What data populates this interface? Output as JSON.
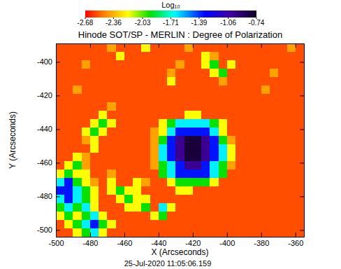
{
  "chart_data": {
    "type": "heatmap",
    "title": "Hinode SOT/SP - MERLIN : Degree of Polarization",
    "x_label": "X (Arcseconds)",
    "y_label": "Y (Arcseconds)",
    "annotations": [
      "25-Jul-2020 11:05:06.159"
    ],
    "xlim": [
      -500,
      -355
    ],
    "ylim": [
      -504,
      -389
    ],
    "xticks": [
      -500,
      -480,
      -460,
      -440,
      -420,
      -400,
      -380,
      -360
    ],
    "yticks": [
      -500,
      -480,
      -460,
      -440,
      -420,
      -400
    ],
    "colorbar_label": "Log₁₀",
    "colorbar_range": [
      -2.68,
      -0.74
    ],
    "colorbar_ticks": [
      -2.68,
      -2.36,
      -2.03,
      -1.71,
      -1.39,
      -1.06,
      -0.74
    ],
    "x": [
      -497.5,
      -492.5,
      -487.5,
      -482.5,
      -477.5,
      -472.5,
      -467.5,
      -462.5,
      -457.5,
      -452.5,
      -447.5,
      -442.5,
      -437.5,
      -432.5,
      -427.5,
      -422.5,
      -417.5,
      -412.5,
      -407.5,
      -402.5,
      -397.5,
      -392.5,
      -387.5,
      -382.5,
      -377.5,
      -372.5,
      -367.5,
      -362.5,
      -357.5
    ],
    "y": [
      -391.5,
      -396.5,
      -401.5,
      -406.5,
      -411.5,
      -416.5,
      -421.5,
      -426.5,
      -431.5,
      -436.5,
      -441.5,
      -446.5,
      -451.5,
      -456.5,
      -461.5,
      -466.5,
      -471.5,
      -476.5,
      -481.5,
      -486.5,
      -491.5,
      -496.5,
      -501.5
    ],
    "values": [
      [
        -2.55,
        -2.55,
        -2.55,
        -2.55,
        -2.55,
        -2.55,
        -2.4,
        -2.55,
        -2.55,
        -2.55,
        -2.2,
        -2.55,
        -2.55,
        -2.55,
        -2.55,
        -2.4,
        -2.55,
        -2.55,
        -2.55,
        -2.55,
        -2.55,
        -2.55,
        -2.55,
        -2.55,
        -2.55,
        -2.55,
        -2.55,
        -2.4,
        -2.55
      ],
      [
        -2.55,
        -2.55,
        -2.55,
        -2.55,
        -2.55,
        -2.55,
        -2.55,
        -2.2,
        -2.55,
        -2.55,
        -2.55,
        -2.55,
        -2.55,
        -2.55,
        -2.55,
        -2.55,
        -2.55,
        -2.2,
        -2.4,
        -2.55,
        -2.55,
        -2.55,
        -2.55,
        -2.55,
        -2.55,
        -2.55,
        -2.55,
        -2.55,
        -2.55
      ],
      [
        -2.55,
        -2.55,
        -2.55,
        -2.4,
        -2.55,
        -2.55,
        -2.55,
        -2.55,
        -2.55,
        -2.55,
        -2.55,
        -2.55,
        -2.55,
        -2.55,
        -2.4,
        -2.55,
        -2.55,
        -2.2,
        -1.95,
        -2.55,
        -2.2,
        -2.55,
        -2.55,
        -2.55,
        -2.55,
        -2.55,
        -2.55,
        -2.55,
        -2.55
      ],
      [
        -2.55,
        -2.55,
        -2.55,
        -2.55,
        -2.55,
        -2.55,
        -2.55,
        -2.55,
        -2.55,
        -2.55,
        -2.55,
        -2.55,
        -2.55,
        -2.4,
        -2.55,
        -2.55,
        -2.55,
        -2.55,
        -2.2,
        -1.95,
        -2.55,
        -2.55,
        -2.55,
        -2.55,
        -2.55,
        -2.4,
        -2.55,
        -2.55,
        -2.55
      ],
      [
        -2.55,
        -2.55,
        -2.55,
        -2.55,
        -2.55,
        -2.55,
        -2.55,
        -2.55,
        -2.55,
        -2.55,
        -2.55,
        -2.55,
        -2.55,
        -2.2,
        -2.55,
        -2.55,
        -2.55,
        -2.55,
        -2.55,
        -2.4,
        -2.55,
        -2.55,
        -2.55,
        -2.55,
        -2.55,
        -2.55,
        -2.55,
        -2.55,
        -2.55
      ],
      [
        -2.55,
        -2.55,
        -2.4,
        -2.55,
        -2.55,
        -2.55,
        -2.55,
        -2.55,
        -2.55,
        -2.55,
        -2.55,
        -2.55,
        -2.55,
        -2.55,
        -2.55,
        -2.55,
        -2.55,
        -2.55,
        -2.55,
        -2.55,
        -2.55,
        -2.55,
        -2.55,
        -2.55,
        -2.4,
        -2.55,
        -2.55,
        -2.55,
        -2.55
      ],
      [
        -2.55,
        -2.55,
        -2.55,
        -2.55,
        -2.55,
        -2.55,
        -2.55,
        -2.55,
        -2.55,
        -2.55,
        -2.55,
        -2.55,
        -2.55,
        -2.55,
        -2.55,
        -2.55,
        -2.55,
        -2.55,
        -2.55,
        -2.55,
        -2.55,
        -2.55,
        -2.55,
        -2.55,
        -2.55,
        -2.55,
        -2.55,
        -2.55,
        -2.55
      ],
      [
        -2.55,
        -2.55,
        -2.55,
        -2.55,
        -2.55,
        -2.55,
        -2.4,
        -2.55,
        -2.55,
        -2.55,
        -2.55,
        -2.55,
        -2.55,
        -2.55,
        -2.55,
        -2.55,
        -2.55,
        -2.55,
        -2.55,
        -2.55,
        -2.55,
        -2.55,
        -2.55,
        -2.55,
        -2.55,
        -2.55,
        -2.55,
        -2.55,
        -2.55
      ],
      [
        -2.55,
        -2.55,
        -2.55,
        -2.55,
        -2.55,
        -2.2,
        -2.55,
        -2.55,
        -2.55,
        -2.55,
        -2.55,
        -2.55,
        -2.55,
        -2.55,
        -2.55,
        -2.2,
        -2.2,
        -2.55,
        -2.55,
        -2.55,
        -2.55,
        -2.55,
        -2.55,
        -2.55,
        -2.55,
        -2.55,
        -2.55,
        -2.55,
        -2.55
      ],
      [
        -2.55,
        -2.55,
        -2.55,
        -2.55,
        -2.2,
        -1.95,
        -2.2,
        -2.55,
        -2.55,
        -2.55,
        -2.55,
        -2.55,
        -2.2,
        -1.95,
        -1.65,
        -1.65,
        -1.65,
        -1.65,
        -1.95,
        -2.2,
        -2.55,
        -2.55,
        -2.55,
        -2.55,
        -2.55,
        -2.55,
        -2.55,
        -2.55,
        -2.55
      ],
      [
        -2.55,
        -2.55,
        -2.55,
        -2.2,
        -1.95,
        -2.2,
        -2.55,
        -2.55,
        -2.55,
        -2.55,
        -2.55,
        -2.4,
        -2.2,
        -1.65,
        -1.35,
        -1.35,
        -1.35,
        -1.35,
        -1.65,
        -2.2,
        -2.55,
        -2.55,
        -2.55,
        -2.55,
        -2.55,
        -2.55,
        -2.55,
        -2.55,
        -2.55
      ],
      [
        -2.55,
        -2.55,
        -2.55,
        -2.4,
        -2.2,
        -2.55,
        -2.55,
        -2.55,
        -2.55,
        -2.55,
        -2.55,
        -2.4,
        -1.95,
        -1.35,
        -1.0,
        -0.8,
        -0.8,
        -1.0,
        -1.35,
        -1.95,
        -2.4,
        -2.55,
        -2.55,
        -2.55,
        -2.55,
        -2.55,
        -2.55,
        -2.55,
        -2.55
      ],
      [
        -2.55,
        -2.55,
        -2.55,
        -2.55,
        -2.2,
        -2.55,
        -2.55,
        -2.55,
        -2.55,
        -2.55,
        -2.55,
        -2.4,
        -1.65,
        -1.35,
        -1.0,
        -0.8,
        -0.8,
        -1.0,
        -1.35,
        -1.65,
        -2.2,
        -2.55,
        -2.55,
        -2.55,
        -2.55,
        -2.55,
        -2.55,
        -2.55,
        -2.55
      ],
      [
        -2.55,
        -2.55,
        -2.2,
        -2.4,
        -2.55,
        -2.55,
        -2.55,
        -2.55,
        -2.55,
        -2.55,
        -2.55,
        -2.4,
        -1.65,
        -1.35,
        -1.0,
        -0.8,
        -0.8,
        -1.0,
        -1.35,
        -1.65,
        -2.2,
        -2.55,
        -2.55,
        -2.55,
        -2.55,
        -2.55,
        -2.55,
        -2.55,
        -2.55
      ],
      [
        -2.55,
        -2.2,
        -1.95,
        -2.4,
        -2.55,
        -2.55,
        -2.55,
        -2.55,
        -2.55,
        -2.55,
        -2.55,
        -2.4,
        -1.95,
        -1.65,
        -1.35,
        -1.0,
        -1.0,
        -1.35,
        -1.65,
        -1.95,
        -2.4,
        -2.55,
        -2.55,
        -2.55,
        -2.55,
        -2.55,
        -2.55,
        -2.55,
        -2.55
      ],
      [
        -2.2,
        -1.95,
        -2.2,
        -2.2,
        -2.55,
        -2.55,
        -2.4,
        -2.55,
        -2.55,
        -2.55,
        -2.55,
        -2.55,
        -1.95,
        -1.65,
        -1.35,
        -1.35,
        -1.35,
        -1.35,
        -1.65,
        -1.95,
        -2.55,
        -2.55,
        -2.55,
        -2.55,
        -2.55,
        -2.55,
        -2.55,
        -2.55,
        -2.55
      ],
      [
        -1.65,
        -1.35,
        -1.95,
        -2.2,
        -2.4,
        -2.55,
        -2.2,
        -2.55,
        -2.55,
        -2.2,
        -2.4,
        -2.55,
        -2.55,
        -2.2,
        -1.95,
        -1.95,
        -1.95,
        -1.95,
        -2.2,
        -2.55,
        -2.55,
        -2.55,
        -2.55,
        -2.55,
        -2.55,
        -2.55,
        -2.55,
        -2.55,
        -2.55
      ],
      [
        -1.35,
        -1.35,
        -1.65,
        -1.95,
        -2.2,
        -2.55,
        -2.2,
        -1.95,
        -2.2,
        -2.2,
        -2.55,
        -2.55,
        -2.55,
        -2.55,
        -2.2,
        -2.2,
        -2.55,
        -2.55,
        -2.55,
        -2.55,
        -2.55,
        -2.55,
        -2.55,
        -2.55,
        -2.55,
        -2.55,
        -2.55,
        -2.55,
        -2.55
      ],
      [
        -1.65,
        -1.35,
        -1.65,
        -1.95,
        -2.2,
        -2.55,
        -2.55,
        -2.2,
        -1.95,
        -2.2,
        -2.2,
        -2.55,
        -2.55,
        -2.55,
        -2.55,
        -2.55,
        -2.55,
        -2.55,
        -2.55,
        -2.55,
        -2.55,
        -2.55,
        -2.55,
        -2.55,
        -2.55,
        -2.55,
        -2.55,
        -2.55,
        -2.55
      ],
      [
        -1.95,
        -1.65,
        -1.95,
        -1.65,
        -2.2,
        -2.55,
        -2.55,
        -2.55,
        -2.2,
        -2.2,
        -1.95,
        -2.55,
        -1.65,
        -2.2,
        -2.55,
        -2.55,
        -2.55,
        -2.55,
        -2.55,
        -2.55,
        -2.55,
        -2.55,
        -2.55,
        -2.55,
        -2.55,
        -2.55,
        -2.55,
        -2.55,
        -2.55
      ],
      [
        -2.2,
        -1.95,
        -2.2,
        -1.95,
        -1.65,
        -2.2,
        -2.55,
        -2.55,
        -2.55,
        -2.55,
        -2.55,
        -2.2,
        -1.95,
        -2.55,
        -2.55,
        -2.55,
        -2.55,
        -2.55,
        -2.55,
        -2.55,
        -2.55,
        -2.55,
        -2.55,
        -2.55,
        -2.55,
        -2.55,
        -2.55,
        -2.55,
        -2.55
      ],
      [
        -2.55,
        -2.2,
        -1.95,
        -1.65,
        -1.35,
        -1.95,
        -2.2,
        -2.55,
        -2.55,
        -2.55,
        -2.55,
        -2.55,
        -2.55,
        -2.55,
        -2.55,
        -2.55,
        -2.55,
        -2.55,
        -2.55,
        -2.55,
        -2.55,
        -2.55,
        -2.55,
        -2.55,
        -2.55,
        -2.55,
        -2.55,
        -2.55,
        -2.55
      ],
      [
        -2.55,
        -2.55,
        -2.2,
        -1.95,
        -1.65,
        -2.2,
        -2.55,
        -2.55,
        -2.55,
        -2.55,
        -2.55,
        -2.55,
        -2.55,
        -2.55,
        -2.55,
        -2.55,
        -2.55,
        -2.55,
        -2.55,
        -2.55,
        -2.55,
        -2.55,
        -2.55,
        -2.55,
        -2.55,
        -2.55,
        -2.55,
        -2.55,
        -2.55
      ]
    ]
  }
}
